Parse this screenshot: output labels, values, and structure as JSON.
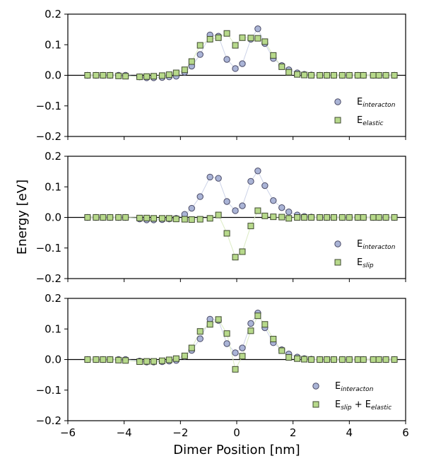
{
  "chart_data": [
    {
      "type": "scatter",
      "panel": "top",
      "ylim": [
        -0.2,
        0.2
      ],
      "xlim": [
        -6,
        6
      ],
      "yticks": [
        "0.2",
        "0.1",
        "0.0",
        "−0.1",
        "−0.2"
      ],
      "ytick_values": [
        0.2,
        0.1,
        0.0,
        -0.1,
        -0.2
      ],
      "legend_placement": "lower-right",
      "series": [
        {
          "name": "E interacton",
          "legend_base": "E",
          "legend_sub": "interacton",
          "legend_rest": "",
          "marker": "circle",
          "color": "#aab4d6",
          "x": [
            -5.3,
            -5.0,
            -4.75,
            -4.5,
            -4.2,
            -3.95,
            -3.45,
            -3.2,
            -2.95,
            -2.65,
            -2.4,
            -2.15,
            -1.85,
            -1.6,
            -1.3,
            -0.95,
            -0.65,
            -0.35,
            -0.05,
            0.2,
            0.5,
            0.75,
            1.0,
            1.3,
            1.6,
            1.85,
            2.15,
            2.4,
            2.65,
            2.95,
            3.2,
            3.45,
            3.75,
            4.0,
            4.3,
            4.5,
            4.85,
            5.05,
            5.3,
            5.6
          ],
          "y": [
            0.0,
            0.0,
            0.0,
            0.0,
            0.0,
            0.0,
            -0.005,
            -0.008,
            -0.008,
            -0.007,
            -0.005,
            -0.003,
            0.01,
            0.03,
            0.068,
            0.132,
            0.128,
            0.052,
            0.022,
            0.038,
            0.118,
            0.152,
            0.104,
            0.055,
            0.032,
            0.018,
            0.008,
            0.003,
            0.001,
            0.0,
            0.0,
            0.0,
            0.0,
            0.0,
            0.0,
            0.0,
            0.0,
            0.0,
            0.0,
            0.0
          ]
        },
        {
          "name": "E elastic",
          "legend_base": "E",
          "legend_sub": "elastic",
          "legend_rest": "",
          "marker": "square",
          "color": "#b7d98b",
          "x": [
            -5.3,
            -5.0,
            -4.75,
            -4.5,
            -4.2,
            -3.95,
            -3.45,
            -3.2,
            -2.95,
            -2.65,
            -2.4,
            -2.15,
            -1.85,
            -1.6,
            -1.3,
            -0.95,
            -0.65,
            -0.35,
            -0.05,
            0.2,
            0.5,
            0.75,
            1.0,
            1.3,
            1.6,
            1.85,
            2.15,
            2.4,
            2.65,
            2.95,
            3.2,
            3.45,
            3.75,
            4.0,
            4.3,
            4.5,
            4.85,
            5.05,
            5.3,
            5.6
          ],
          "y": [
            0.0,
            0.0,
            0.0,
            0.0,
            -0.002,
            -0.003,
            -0.005,
            -0.004,
            -0.003,
            -0.001,
            0.002,
            0.008,
            0.018,
            0.045,
            0.098,
            0.118,
            0.123,
            0.137,
            0.098,
            0.123,
            0.122,
            0.121,
            0.11,
            0.065,
            0.028,
            0.01,
            0.003,
            0.001,
            0.0,
            0.0,
            0.0,
            0.0,
            0.0,
            0.0,
            0.0,
            0.0,
            0.0,
            0.0,
            0.0,
            0.0
          ]
        }
      ]
    },
    {
      "type": "scatter",
      "panel": "middle",
      "ylim": [
        -0.2,
        0.2
      ],
      "xlim": [
        -6,
        6
      ],
      "yticks": [
        "0.2",
        "0.1",
        "0.0",
        "−0.1",
        "−0.2"
      ],
      "ytick_values": [
        0.2,
        0.1,
        0.0,
        -0.1,
        -0.2
      ],
      "legend_placement": "lower-right",
      "series": [
        {
          "name": "E interacton",
          "legend_base": "E",
          "legend_sub": "interacton",
          "legend_rest": "",
          "marker": "circle",
          "color": "#aab4d6",
          "x": [
            -5.3,
            -5.0,
            -4.75,
            -4.5,
            -4.2,
            -3.95,
            -3.45,
            -3.2,
            -2.95,
            -2.65,
            -2.4,
            -2.15,
            -1.85,
            -1.6,
            -1.3,
            -0.95,
            -0.65,
            -0.35,
            -0.05,
            0.2,
            0.5,
            0.75,
            1.0,
            1.3,
            1.6,
            1.85,
            2.15,
            2.4,
            2.65,
            2.95,
            3.2,
            3.45,
            3.75,
            4.0,
            4.3,
            4.5,
            4.85,
            5.05,
            5.3,
            5.6
          ],
          "y": [
            0.0,
            0.0,
            0.0,
            0.0,
            0.0,
            0.0,
            -0.005,
            -0.008,
            -0.008,
            -0.007,
            -0.005,
            -0.003,
            0.01,
            0.03,
            0.068,
            0.132,
            0.128,
            0.052,
            0.022,
            0.038,
            0.118,
            0.152,
            0.104,
            0.055,
            0.032,
            0.018,
            0.008,
            0.003,
            0.001,
            0.0,
            0.0,
            0.0,
            0.0,
            0.0,
            0.0,
            0.0,
            0.0,
            0.0,
            0.0,
            0.0
          ]
        },
        {
          "name": "E slip",
          "legend_base": "E",
          "legend_sub": "slip",
          "legend_rest": "",
          "marker": "square",
          "color": "#b7d98b",
          "x": [
            -5.3,
            -5.0,
            -4.75,
            -4.5,
            -4.2,
            -3.95,
            -3.45,
            -3.2,
            -2.95,
            -2.65,
            -2.4,
            -2.15,
            -1.85,
            -1.6,
            -1.3,
            -0.95,
            -0.65,
            -0.35,
            -0.05,
            0.2,
            0.5,
            0.75,
            1.0,
            1.3,
            1.6,
            1.85,
            2.15,
            2.4,
            2.65,
            2.95,
            3.2,
            3.45,
            3.75,
            4.0,
            4.3,
            4.5,
            4.85,
            5.05,
            5.3,
            5.6
          ],
          "y": [
            0.0,
            0.0,
            0.0,
            0.0,
            0.0,
            0.0,
            -0.002,
            -0.002,
            -0.003,
            -0.003,
            -0.003,
            -0.005,
            -0.006,
            -0.007,
            -0.006,
            -0.003,
            0.008,
            -0.052,
            -0.13,
            -0.112,
            -0.028,
            0.022,
            0.005,
            0.002,
            0.001,
            -0.003,
            0.0,
            0.0,
            0.0,
            0.0,
            0.0,
            0.0,
            0.0,
            0.0,
            0.0,
            0.0,
            0.0,
            0.0,
            0.0,
            0.0
          ]
        }
      ]
    },
    {
      "type": "scatter",
      "panel": "bottom",
      "ylim": [
        -0.2,
        0.2
      ],
      "xlim": [
        -6,
        6
      ],
      "yticks": [
        "0.2",
        "0.1",
        "0.0",
        "−0.1",
        "−0.2"
      ],
      "ytick_values": [
        0.2,
        0.1,
        0.0,
        -0.1,
        -0.2
      ],
      "xticks": [
        "−6",
        "−4",
        "−2",
        "0",
        "2",
        "4",
        "6"
      ],
      "xtick_values": [
        -6,
        -4,
        -2,
        0,
        2,
        4,
        6
      ],
      "legend_placement": "lower-right",
      "series": [
        {
          "name": "E interacton",
          "legend_base": "E",
          "legend_sub": "interacton",
          "legend_rest": "",
          "marker": "circle",
          "color": "#aab4d6",
          "x": [
            -5.3,
            -5.0,
            -4.75,
            -4.5,
            -4.2,
            -3.95,
            -3.45,
            -3.2,
            -2.95,
            -2.65,
            -2.4,
            -2.15,
            -1.85,
            -1.6,
            -1.3,
            -0.95,
            -0.65,
            -0.35,
            -0.05,
            0.2,
            0.5,
            0.75,
            1.0,
            1.3,
            1.6,
            1.85,
            2.15,
            2.4,
            2.65,
            2.95,
            3.2,
            3.45,
            3.75,
            4.0,
            4.3,
            4.5,
            4.85,
            5.05,
            5.3,
            5.6
          ],
          "y": [
            0.0,
            0.0,
            0.0,
            0.0,
            0.0,
            0.0,
            -0.005,
            -0.008,
            -0.008,
            -0.007,
            -0.005,
            -0.003,
            0.01,
            0.03,
            0.068,
            0.132,
            0.128,
            0.052,
            0.022,
            0.038,
            0.118,
            0.152,
            0.104,
            0.055,
            0.032,
            0.018,
            0.008,
            0.003,
            0.001,
            0.0,
            0.0,
            0.0,
            0.0,
            0.0,
            0.0,
            0.0,
            0.0,
            0.0,
            0.0,
            0.0
          ]
        },
        {
          "name": "E slip + E elastic",
          "legend_base": "E",
          "legend_sub": "slip",
          "legend_rest": " + E",
          "legend_sub2": "elastic",
          "marker": "square",
          "color": "#b7d98b",
          "x": [
            -5.3,
            -5.0,
            -4.75,
            -4.5,
            -4.2,
            -3.95,
            -3.45,
            -3.2,
            -2.95,
            -2.65,
            -2.4,
            -2.15,
            -1.85,
            -1.6,
            -1.3,
            -0.95,
            -0.65,
            -0.35,
            -0.05,
            0.2,
            0.5,
            0.75,
            1.0,
            1.3,
            1.6,
            1.85,
            2.15,
            2.4,
            2.65,
            2.95,
            3.2,
            3.45,
            3.75,
            4.0,
            4.3,
            4.5,
            4.85,
            5.05,
            5.3,
            5.6
          ],
          "y": [
            0.0,
            0.0,
            0.0,
            0.0,
            -0.002,
            -0.003,
            -0.007,
            -0.006,
            -0.006,
            -0.004,
            -0.001,
            0.003,
            0.012,
            0.038,
            0.092,
            0.115,
            0.131,
            0.085,
            -0.032,
            0.011,
            0.094,
            0.143,
            0.115,
            0.067,
            0.029,
            0.007,
            0.003,
            0.001,
            0.0,
            0.0,
            0.0,
            0.0,
            0.0,
            0.0,
            0.0,
            0.0,
            0.0,
            0.0,
            0.0,
            0.0
          ]
        }
      ]
    }
  ],
  "figure": {
    "ylabel": "Energy [eV]",
    "xlabel": "Dimer Position [nm]"
  }
}
